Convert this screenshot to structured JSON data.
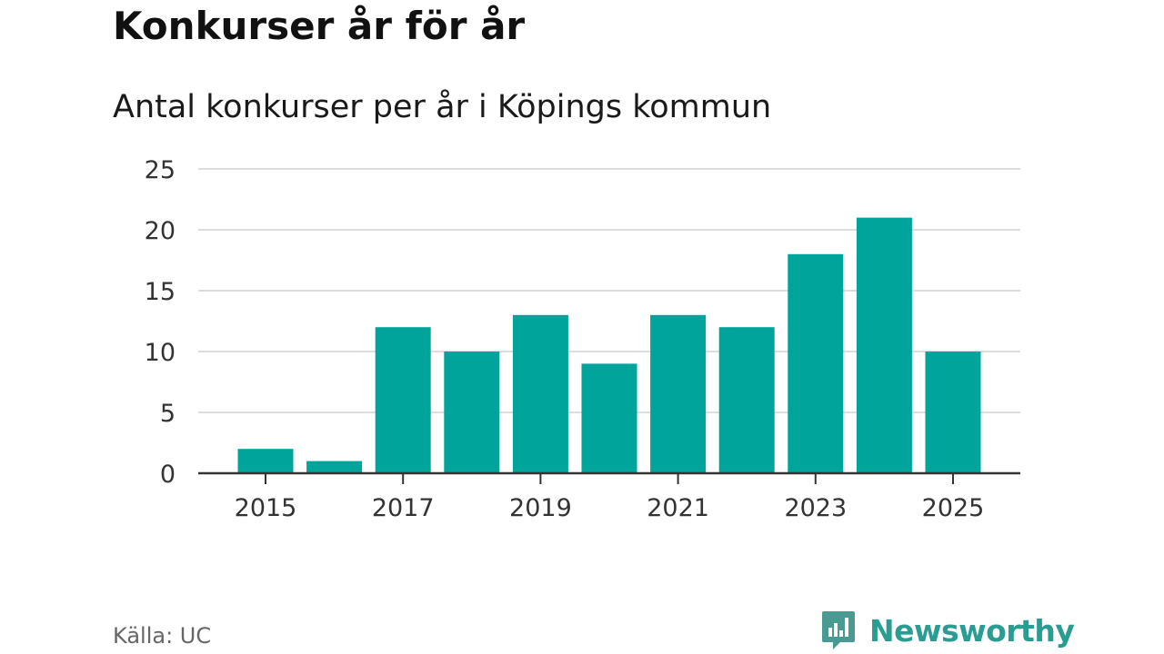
{
  "header": {
    "title": "Konkurser år för år",
    "subtitle": "Antal konkurser per år i Köpings kommun"
  },
  "footer": {
    "source": "Källa: UC",
    "brand": "Newsworthy",
    "brand_icon": "newsworthy-logo-icon"
  },
  "colors": {
    "bar": "#00a49a",
    "grid": "#dddddd",
    "axis": "#333333",
    "text": "#333333",
    "brand": "#2a9d93"
  },
  "chart_data": {
    "type": "bar",
    "title": "Konkurser år för år",
    "subtitle": "Antal konkurser per år i Köpings kommun",
    "xlabel": "",
    "ylabel": "",
    "categories": [
      "2015",
      "2016",
      "2017",
      "2018",
      "2019",
      "2020",
      "2021",
      "2022",
      "2023",
      "2024",
      "2025"
    ],
    "values": [
      2,
      1,
      12,
      10,
      13,
      9,
      13,
      12,
      18,
      21,
      10
    ],
    "x_tick_labels": [
      "2015",
      "2017",
      "2019",
      "2021",
      "2023",
      "2025"
    ],
    "y_ticks": [
      0,
      5,
      10,
      15,
      20,
      25
    ],
    "ylim": [
      0,
      25
    ],
    "grid": true,
    "legend": "none"
  }
}
